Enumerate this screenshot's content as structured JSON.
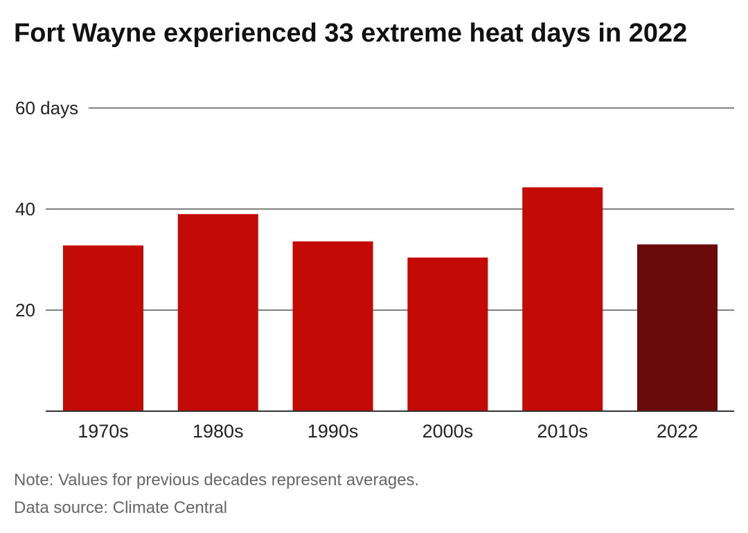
{
  "title": "Fort Wayne experienced 33 extreme heat days in 2022",
  "notes": {
    "note": "Note: Values for previous decades represent averages.",
    "source": "Data source: Climate Central"
  },
  "colors": {
    "bar": "#c40a05",
    "highlight": "#6b0a0b",
    "grid": "#555555",
    "axis": "#333333",
    "text": "#222222"
  },
  "chart_data": {
    "type": "bar",
    "categories": [
      "1970s",
      "1980s",
      "1990s",
      "2000s",
      "2010s",
      "2022"
    ],
    "values": [
      32.8,
      39.0,
      33.6,
      30.4,
      44.3,
      33
    ],
    "highlight_category": "2022",
    "ylim": [
      0,
      60
    ],
    "yticks": [
      20,
      40,
      60
    ],
    "ytick_labels": [
      "20",
      "40",
      "60 days"
    ],
    "grid": true,
    "title": "Fort Wayne experienced 33 extreme heat days in 2022",
    "xlabel": "",
    "ylabel": ""
  }
}
